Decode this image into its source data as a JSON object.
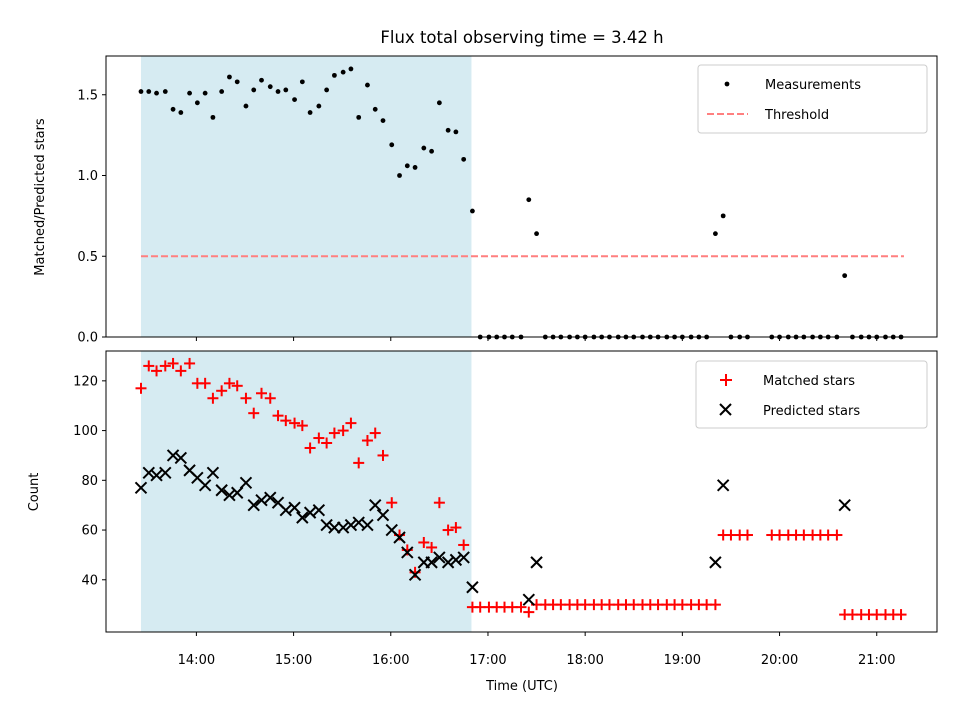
{
  "chart_data": {
    "title": "Flux total observing time = 3.42 h",
    "xlabel": "Time (UTC)",
    "x_tick_labels": [
      "14:00",
      "15:00",
      "16:00",
      "17:00",
      "18:00",
      "19:00",
      "20:00",
      "21:00"
    ],
    "x_tick_hours": [
      14,
      15,
      16,
      17,
      18,
      19,
      20,
      21
    ],
    "xlim_hours": [
      13.07,
      21.62
    ],
    "shaded_interval_hours": [
      13.43,
      16.83
    ],
    "colors": {
      "shade": "#add8e6",
      "matched": "#ff0000",
      "predicted": "#000000",
      "threshold": "#ff7f7f",
      "measurement": "#000000"
    },
    "panels": [
      {
        "type": "scatter",
        "ylabel": "Matched/Predicted stars",
        "ylim": [
          0,
          1.74
        ],
        "y_ticks": [
          0.0,
          0.5,
          1.0,
          1.5
        ],
        "y_tick_labels": [
          "0.0",
          "0.5",
          "1.0",
          "1.5"
        ],
        "legend": {
          "placement": "top-right",
          "entries": [
            "Measurements",
            "Threshold"
          ]
        },
        "threshold": {
          "name": "Threshold",
          "y": 0.5,
          "x_range_hours": [
            13.43,
            21.28
          ]
        },
        "series": [
          {
            "name": "Measurements",
            "x": [
              13.43,
              13.51,
              13.59,
              13.68,
              13.76,
              13.84,
              13.93,
              14.01,
              14.09,
              14.17,
              14.26,
              14.34,
              14.42,
              14.51,
              14.59,
              14.67,
              14.76,
              14.84,
              14.92,
              15.01,
              15.09,
              15.17,
              15.26,
              15.34,
              15.42,
              15.51,
              15.59,
              15.67,
              15.76,
              15.84,
              15.92,
              16.01,
              16.09,
              16.17,
              16.25,
              16.34,
              16.42,
              16.5,
              16.59,
              16.67,
              16.75,
              16.84,
              16.92,
              17.01,
              17.09,
              17.17,
              17.25,
              17.34,
              17.42,
              17.5,
              17.59,
              17.67,
              17.75,
              17.84,
              17.92,
              18.0,
              18.09,
              18.17,
              18.25,
              18.34,
              18.42,
              18.5,
              18.59,
              18.67,
              18.75,
              18.84,
              18.92,
              19.0,
              19.09,
              19.17,
              19.25,
              19.34,
              19.42,
              19.5,
              19.59,
              19.67,
              19.92,
              20.0,
              20.09,
              20.17,
              20.25,
              20.34,
              20.42,
              20.5,
              20.59,
              20.67,
              20.75,
              20.84,
              20.92,
              21.0,
              21.09,
              21.17,
              21.25
            ],
            "y": [
              1.52,
              1.52,
              1.51,
              1.52,
              1.41,
              1.39,
              1.51,
              1.45,
              1.51,
              1.36,
              1.52,
              1.61,
              1.58,
              1.43,
              1.53,
              1.59,
              1.55,
              1.52,
              1.53,
              1.47,
              1.58,
              1.39,
              1.43,
              1.53,
              1.62,
              1.64,
              1.66,
              1.36,
              1.56,
              1.41,
              1.34,
              1.19,
              1.0,
              1.06,
              1.05,
              1.17,
              1.15,
              1.45,
              1.28,
              1.27,
              1.1,
              0.78,
              0.0,
              0.0,
              0.0,
              0.0,
              0.0,
              0.0,
              0.85,
              0.64,
              0.0,
              0.0,
              0.0,
              0.0,
              0.0,
              0.0,
              0.0,
              0.0,
              0.0,
              0.0,
              0.0,
              0.0,
              0.0,
              0.0,
              0.0,
              0.0,
              0.0,
              0.0,
              0.0,
              0.0,
              0.0,
              0.64,
              0.75,
              0.0,
              0.0,
              0.0,
              0.0,
              0.0,
              0.0,
              0.0,
              0.0,
              0.0,
              0.0,
              0.0,
              0.0,
              0.38,
              0.0,
              0.0,
              0.0,
              0.0,
              0.0,
              0.0,
              0.0
            ]
          }
        ]
      },
      {
        "type": "scatter",
        "ylabel": "Count",
        "ylim": [
          19,
          132
        ],
        "y_ticks": [
          40,
          60,
          80,
          100,
          120
        ],
        "y_tick_labels": [
          "40",
          "60",
          "80",
          "100",
          "120"
        ],
        "legend": {
          "placement": "top-right",
          "entries": [
            "Matched stars",
            "Predicted stars"
          ]
        },
        "series": [
          {
            "name": "Matched stars",
            "marker": "plus",
            "x": [
              13.43,
              13.51,
              13.59,
              13.68,
              13.76,
              13.84,
              13.93,
              14.01,
              14.09,
              14.17,
              14.26,
              14.34,
              14.42,
              14.51,
              14.59,
              14.67,
              14.76,
              14.84,
              14.92,
              15.01,
              15.09,
              15.17,
              15.26,
              15.34,
              15.42,
              15.51,
              15.59,
              15.67,
              15.76,
              15.84,
              15.92,
              16.01,
              16.09,
              16.17,
              16.25,
              16.34,
              16.42,
              16.5,
              16.59,
              16.67,
              16.75,
              16.84,
              16.92,
              17.01,
              17.09,
              17.17,
              17.25,
              17.34,
              17.42,
              17.5,
              17.59,
              17.67,
              17.75,
              17.84,
              17.92,
              18.0,
              18.09,
              18.17,
              18.25,
              18.34,
              18.42,
              18.5,
              18.59,
              18.67,
              18.75,
              18.84,
              18.92,
              19.0,
              19.09,
              19.17,
              19.25,
              19.34,
              19.42,
              19.5,
              19.59,
              19.67,
              19.92,
              20.0,
              20.09,
              20.17,
              20.25,
              20.34,
              20.42,
              20.5,
              20.59,
              20.67,
              20.75,
              20.84,
              20.92,
              21.0,
              21.09,
              21.17,
              21.25
            ],
            "y": [
              117,
              126,
              124,
              126,
              127,
              124,
              127,
              119,
              119,
              113,
              116,
              119,
              118,
              113,
              107,
              115,
              113,
              106,
              104,
              103,
              102,
              93,
              97,
              95,
              99,
              100,
              103,
              87,
              96,
              99,
              90,
              71,
              58,
              52,
              43,
              55,
              53,
              71,
              60,
              61,
              54,
              29,
              29,
              29,
              29,
              29,
              29,
              29,
              27,
              30,
              30,
              30,
              30,
              30,
              30,
              30,
              30,
              30,
              30,
              30,
              30,
              30,
              30,
              30,
              30,
              30,
              30,
              30,
              30,
              30,
              30,
              30,
              58,
              58,
              58,
              58,
              58,
              58,
              58,
              58,
              58,
              58,
              58,
              58,
              58,
              26,
              26,
              26,
              26,
              26,
              26,
              26,
              26
            ]
          },
          {
            "name": "Predicted stars",
            "marker": "x",
            "x": [
              13.43,
              13.51,
              13.59,
              13.68,
              13.76,
              13.84,
              13.93,
              14.01,
              14.09,
              14.17,
              14.26,
              14.34,
              14.42,
              14.51,
              14.59,
              14.67,
              14.76,
              14.84,
              14.92,
              15.01,
              15.09,
              15.17,
              15.26,
              15.34,
              15.42,
              15.51,
              15.59,
              15.67,
              15.76,
              15.84,
              15.92,
              16.01,
              16.09,
              16.17,
              16.25,
              16.34,
              16.42,
              16.5,
              16.59,
              16.67,
              16.75,
              16.84,
              17.42,
              17.5,
              19.34,
              19.42,
              20.67
            ],
            "y": [
              77,
              83,
              82,
              83,
              90,
              89,
              84,
              81,
              78,
              83,
              76,
              74,
              75,
              79,
              70,
              72,
              73,
              71,
              68,
              69,
              65,
              67,
              68,
              62,
              61,
              61,
              62,
              63,
              62,
              70,
              66,
              60,
              57,
              51,
              42,
              47,
              47,
              49,
              47,
              48,
              49,
              37,
              32,
              47,
              47,
              78,
              70
            ]
          }
        ]
      }
    ]
  }
}
